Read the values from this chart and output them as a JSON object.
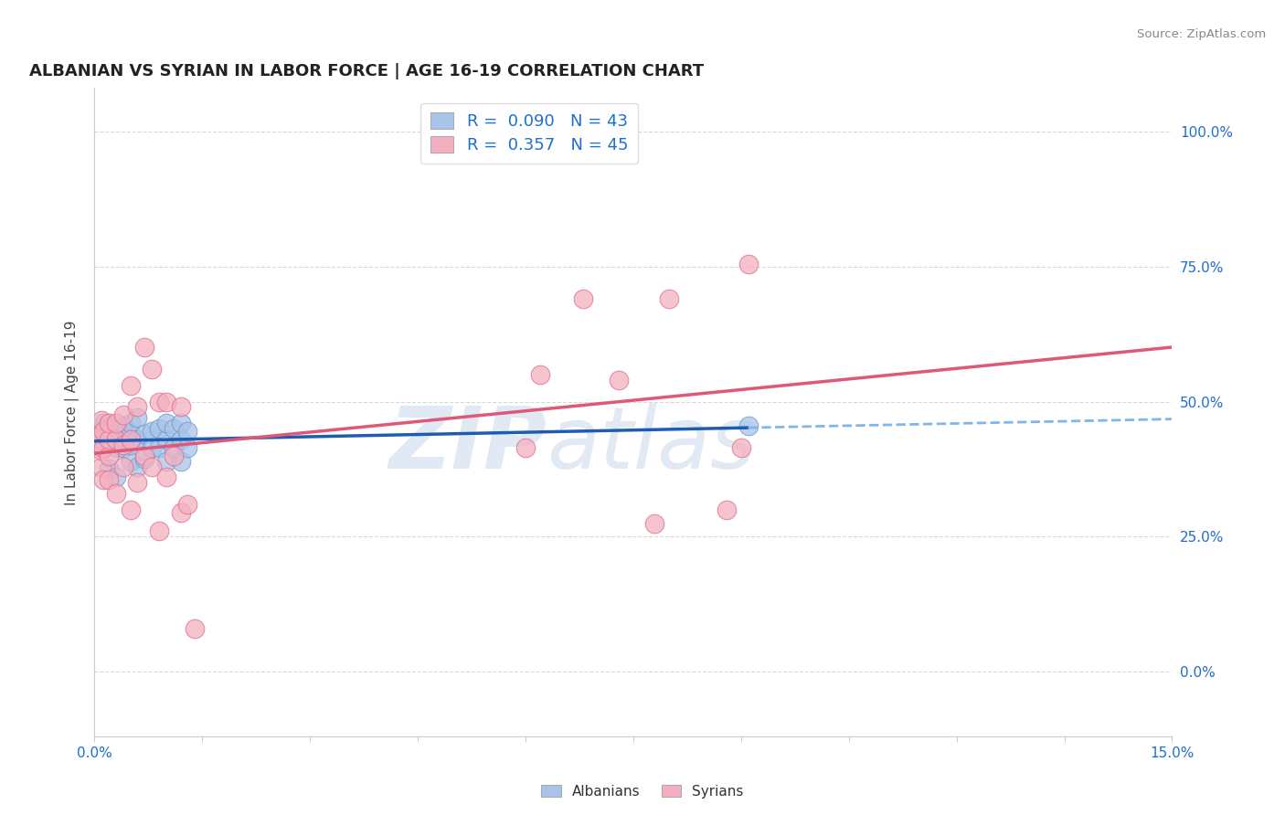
{
  "title": "ALBANIAN VS SYRIAN IN LABOR FORCE | AGE 16-19 CORRELATION CHART",
  "source_text": "Source: ZipAtlas.com",
  "ylabel": "In Labor Force | Age 16-19",
  "xlim": [
    0.0,
    0.15
  ],
  "ylim": [
    -0.12,
    1.08
  ],
  "watermark_zip": "ZIP",
  "watermark_atlas": "atlas",
  "albanian_color": "#A8C4E8",
  "albanian_edge_color": "#7098CC",
  "syrian_color": "#F4B0C0",
  "syrian_edge_color": "#E07090",
  "albanian_line_color": "#1E5CB3",
  "albanian_dash_color": "#7FB8E8",
  "syrian_line_color": "#E05878",
  "grid_color": "#D8D8D8",
  "background_color": "#FFFFFF",
  "alb_x": [
    0.001,
    0.001,
    0.001,
    0.001,
    0.001,
    0.0013,
    0.0013,
    0.002,
    0.002,
    0.002,
    0.002,
    0.002,
    0.003,
    0.003,
    0.003,
    0.003,
    0.004,
    0.004,
    0.004,
    0.005,
    0.005,
    0.005,
    0.005,
    0.006,
    0.006,
    0.006,
    0.007,
    0.007,
    0.008,
    0.008,
    0.009,
    0.009,
    0.01,
    0.01,
    0.01,
    0.011,
    0.011,
    0.012,
    0.012,
    0.012,
    0.013,
    0.013,
    0.091
  ],
  "alb_y": [
    0.415,
    0.43,
    0.435,
    0.44,
    0.45,
    0.44,
    0.46,
    0.375,
    0.42,
    0.43,
    0.445,
    0.455,
    0.36,
    0.415,
    0.43,
    0.45,
    0.415,
    0.435,
    0.455,
    0.39,
    0.42,
    0.44,
    0.46,
    0.38,
    0.43,
    0.47,
    0.395,
    0.44,
    0.415,
    0.445,
    0.415,
    0.45,
    0.39,
    0.43,
    0.46,
    0.415,
    0.45,
    0.39,
    0.43,
    0.46,
    0.415,
    0.445,
    0.455
  ],
  "syr_x": [
    0.001,
    0.001,
    0.001,
    0.001,
    0.001,
    0.0013,
    0.0013,
    0.0013,
    0.002,
    0.002,
    0.002,
    0.002,
    0.003,
    0.003,
    0.003,
    0.004,
    0.004,
    0.004,
    0.005,
    0.005,
    0.005,
    0.006,
    0.006,
    0.007,
    0.007,
    0.008,
    0.008,
    0.009,
    0.009,
    0.01,
    0.01,
    0.011,
    0.012,
    0.012,
    0.013,
    0.014,
    0.06,
    0.062,
    0.068,
    0.073,
    0.078,
    0.08,
    0.088,
    0.09,
    0.091
  ],
  "syr_y": [
    0.38,
    0.41,
    0.43,
    0.44,
    0.465,
    0.355,
    0.415,
    0.445,
    0.355,
    0.4,
    0.43,
    0.46,
    0.33,
    0.43,
    0.46,
    0.38,
    0.42,
    0.475,
    0.3,
    0.43,
    0.53,
    0.35,
    0.49,
    0.4,
    0.6,
    0.38,
    0.56,
    0.26,
    0.5,
    0.36,
    0.5,
    0.4,
    0.295,
    0.49,
    0.31,
    0.08,
    0.415,
    0.55,
    0.69,
    0.54,
    0.275,
    0.69,
    0.3,
    0.415,
    0.755
  ]
}
